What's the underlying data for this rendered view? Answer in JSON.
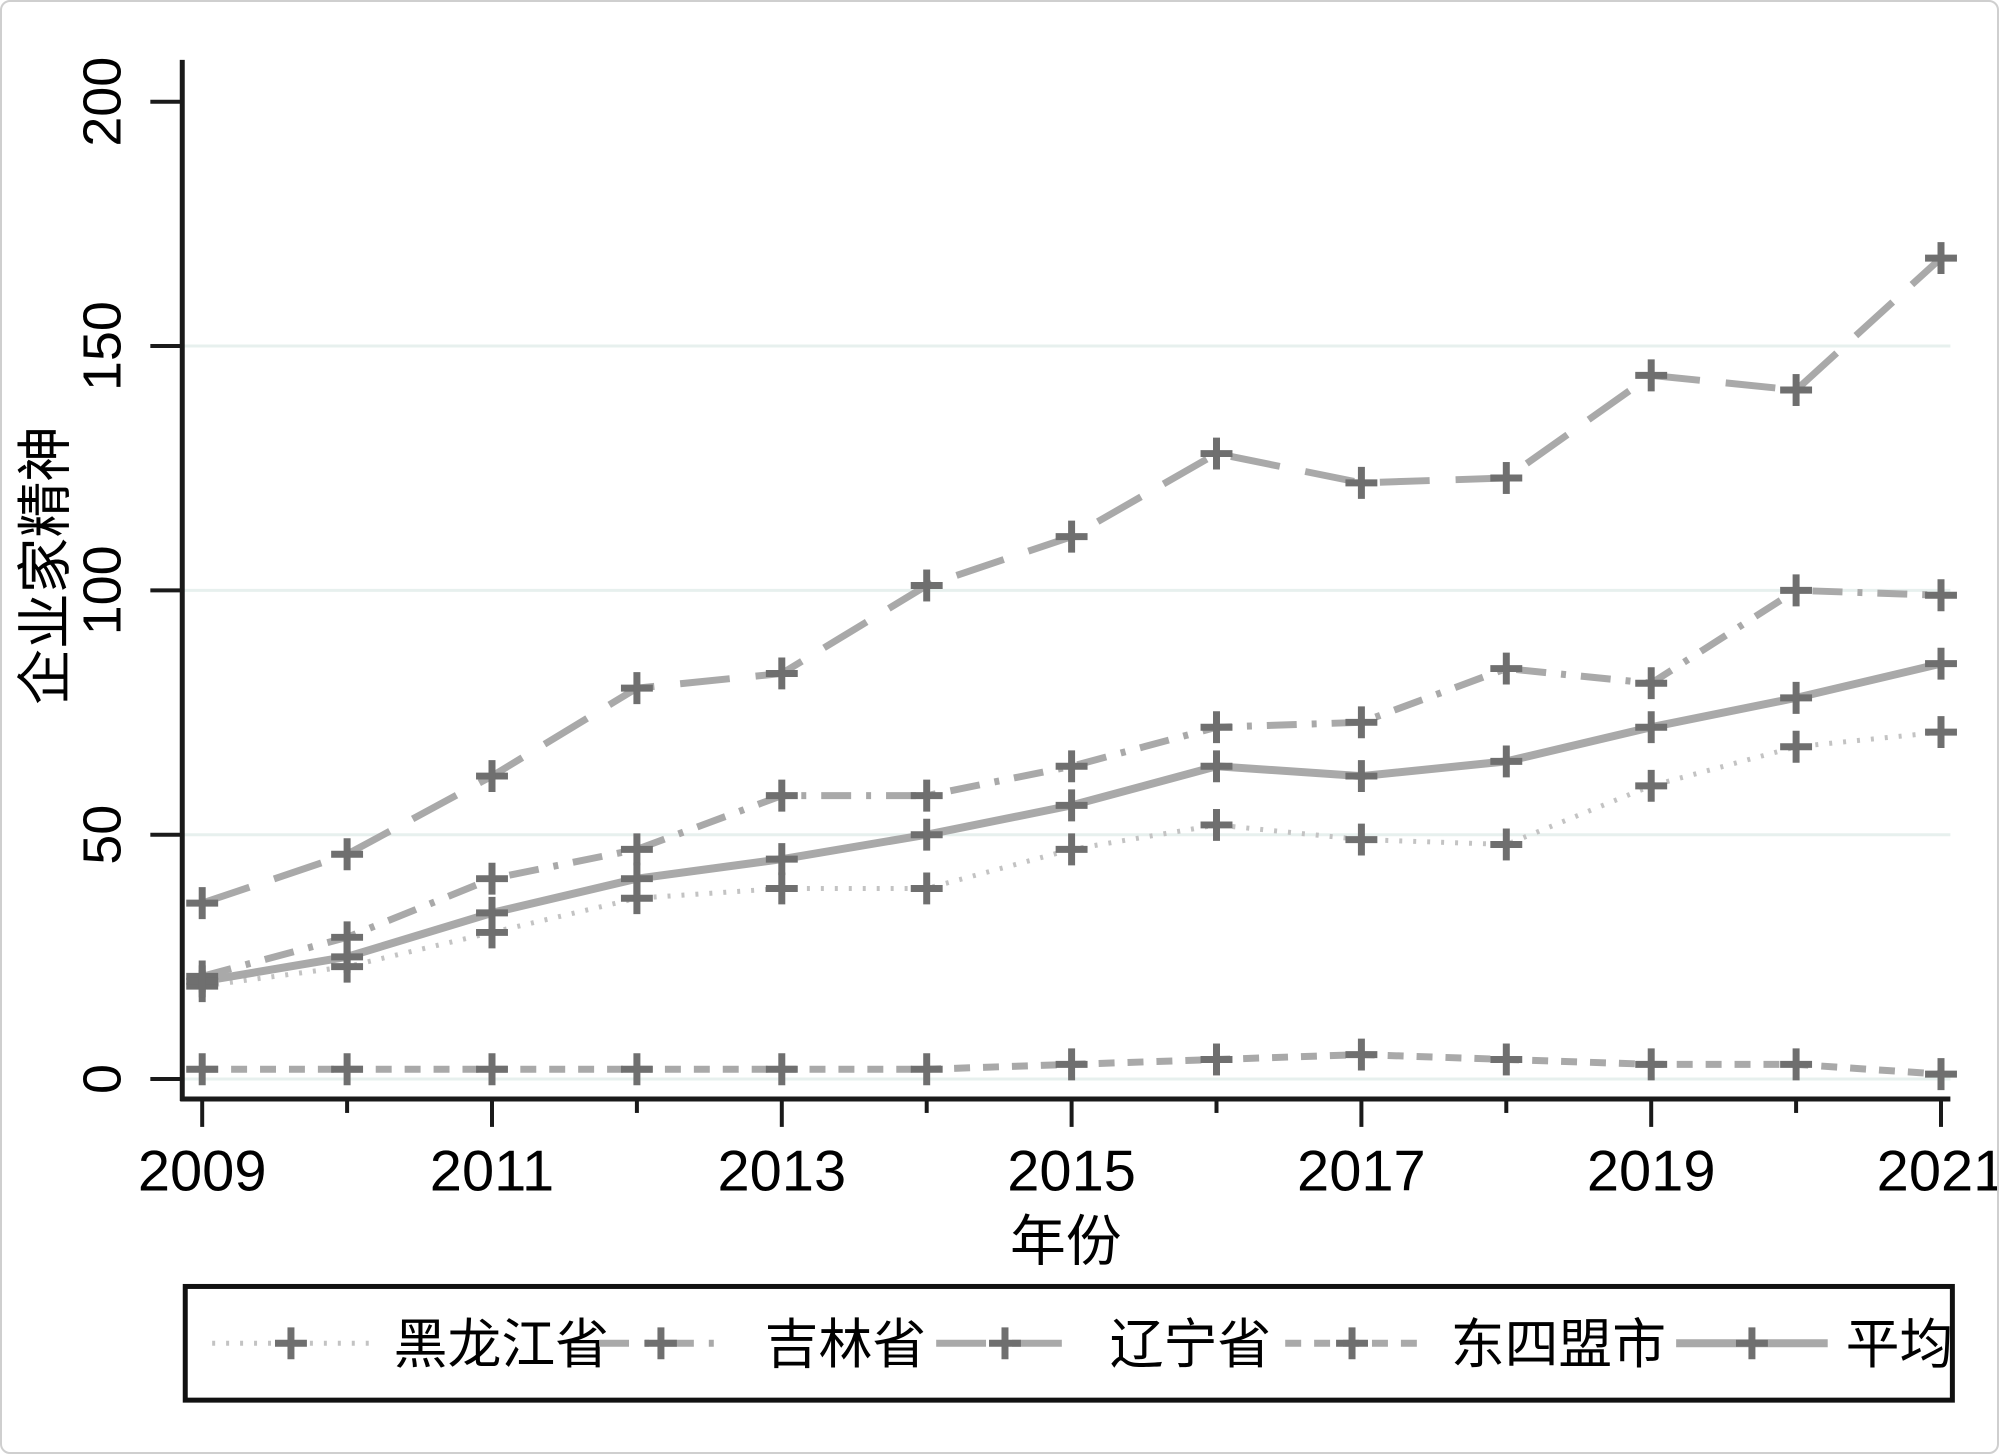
{
  "figure": {
    "description": "Stata-style line chart of entrepreneurship index for northeast China regions, 2009-2021"
  },
  "chart_data": {
    "type": "line",
    "title": "",
    "xlabel": "年份",
    "ylabel": "企业家精神",
    "x": [
      2009,
      2010,
      2011,
      2012,
      2013,
      2014,
      2015,
      2016,
      2017,
      2018,
      2019,
      2020,
      2021
    ],
    "x_major_tick_labels": [
      "2009",
      "2011",
      "2013",
      "2015",
      "2017",
      "2019",
      "2021"
    ],
    "ylim": [
      0,
      200
    ],
    "yticks": [
      0,
      50,
      100,
      150,
      200
    ],
    "grid": "horizontal",
    "legend_position": "bottom",
    "marker": "plus",
    "series": [
      {
        "name": "黑龙江省",
        "style": "dotted",
        "values": [
          19,
          23,
          30,
          37,
          39,
          39,
          47,
          52,
          49,
          48,
          60,
          68,
          71
        ]
      },
      {
        "name": "吉林省",
        "style": "dashdot",
        "values": [
          21,
          29,
          41,
          47,
          58,
          58,
          64,
          72,
          73,
          84,
          81,
          100,
          99
        ]
      },
      {
        "name": "辽宁省",
        "style": "longdash",
        "values": [
          36,
          46,
          62,
          80,
          83,
          101,
          111,
          128,
          122,
          123,
          144,
          141,
          168
        ]
      },
      {
        "name": "东四盟市",
        "style": "shortdash",
        "values": [
          2,
          2,
          2,
          2,
          2,
          2,
          3,
          4,
          5,
          4,
          3,
          3,
          1
        ]
      },
      {
        "name": "平均",
        "style": "solid",
        "values": [
          20,
          25,
          34,
          41,
          45,
          50,
          56,
          64,
          62,
          65,
          72,
          78,
          85
        ]
      }
    ]
  },
  "colors": {
    "line": "#a9a9a9",
    "line_light": "#c3c3c3",
    "marker": "#6f6f6f",
    "grid": "#e7f0ee",
    "axis": "#1a1a1a",
    "text": "#000000",
    "legend_border": "#111111",
    "background": "#ffffff"
  }
}
